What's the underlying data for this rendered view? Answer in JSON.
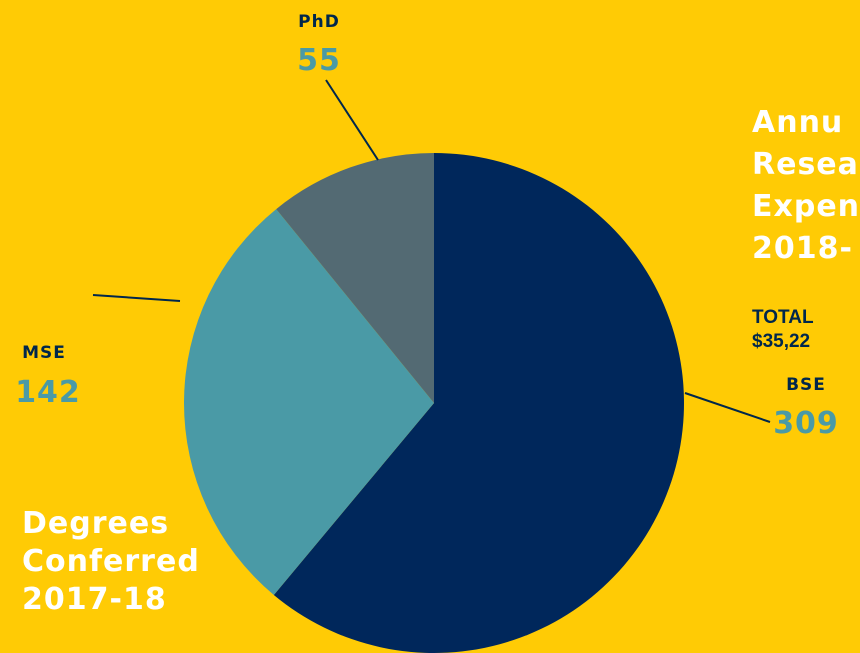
{
  "chart_data": {
    "type": "pie",
    "categories": [
      "BSE",
      "MSE",
      "PhD"
    ],
    "values": [
      309,
      142,
      55
    ],
    "colors": [
      "#00275B",
      "#4A9AA6",
      "#536A73"
    ],
    "value_color": "#4A9AA6",
    "label_color": "#00274C",
    "title_lines": [
      "Degrees",
      "Conferred",
      "2017-18"
    ]
  },
  "side_panel": {
    "title_lines": [
      "Annu",
      "Resea",
      "Expen",
      "2018-"
    ],
    "total_label": "TOTAL",
    "total_value": "$35,22"
  },
  "colors": {
    "background": "#FFCB05",
    "title_text": "#FFFFFF"
  }
}
